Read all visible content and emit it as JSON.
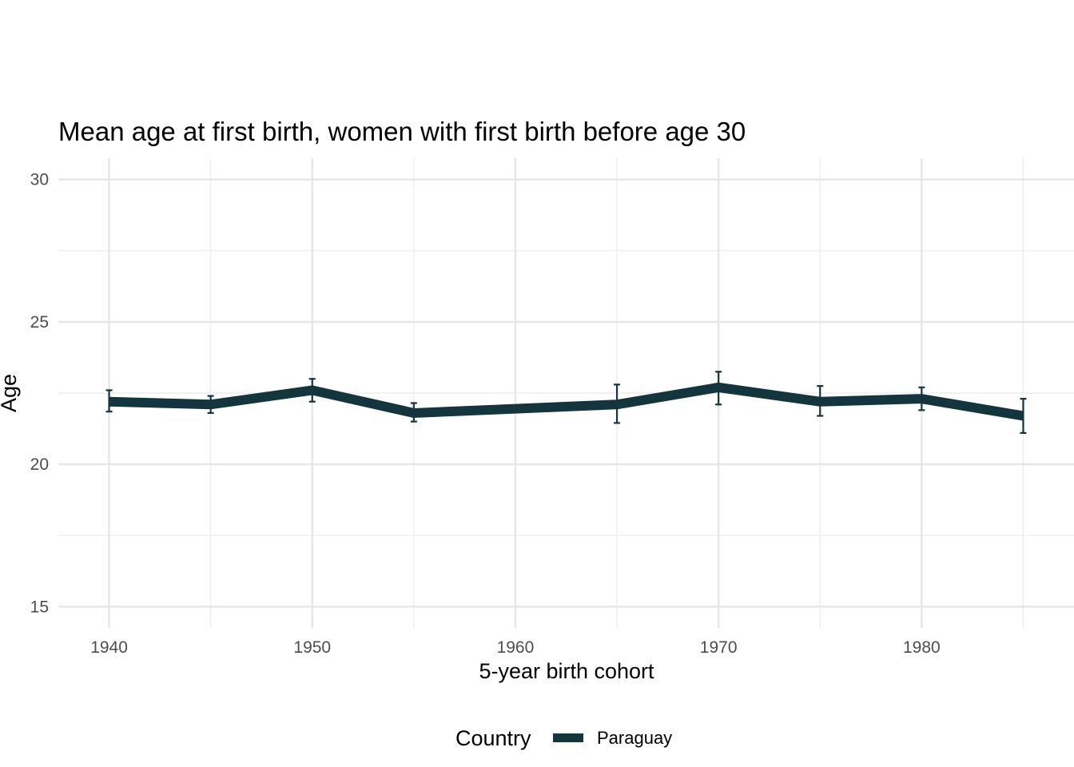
{
  "chart_data": {
    "type": "line",
    "title": "Mean age at first birth, women with first birth before age 30",
    "xlabel": "5-year birth cohort",
    "ylabel": "Age",
    "xlim": [
      1937.5,
      1987.5
    ],
    "ylim": [
      14.25,
      30.75
    ],
    "x_ticks": [
      1940,
      1950,
      1960,
      1970,
      1980
    ],
    "x_minor_ticks": [
      1945,
      1955,
      1965,
      1975,
      1985
    ],
    "y_ticks": [
      15,
      20,
      25,
      30
    ],
    "y_minor_ticks": [
      17.5,
      22.5,
      27.5
    ],
    "grid": true,
    "legend": {
      "title": "Country",
      "position": "bottom"
    },
    "series": [
      {
        "name": "Paraguay",
        "color": "#14343e",
        "x": [
          1940,
          1945,
          1950,
          1955,
          1960,
          1965,
          1970,
          1975,
          1980,
          1985
        ],
        "y": [
          22.2,
          22.1,
          22.6,
          21.8,
          21.95,
          22.1,
          22.7,
          22.2,
          22.3,
          21.7
        ],
        "error_low": [
          21.85,
          21.8,
          22.2,
          21.5,
          null,
          21.45,
          22.1,
          21.7,
          21.9,
          21.1
        ],
        "error_high": [
          22.6,
          22.4,
          23.0,
          22.15,
          null,
          22.8,
          23.25,
          22.75,
          22.7,
          22.3
        ]
      }
    ]
  }
}
